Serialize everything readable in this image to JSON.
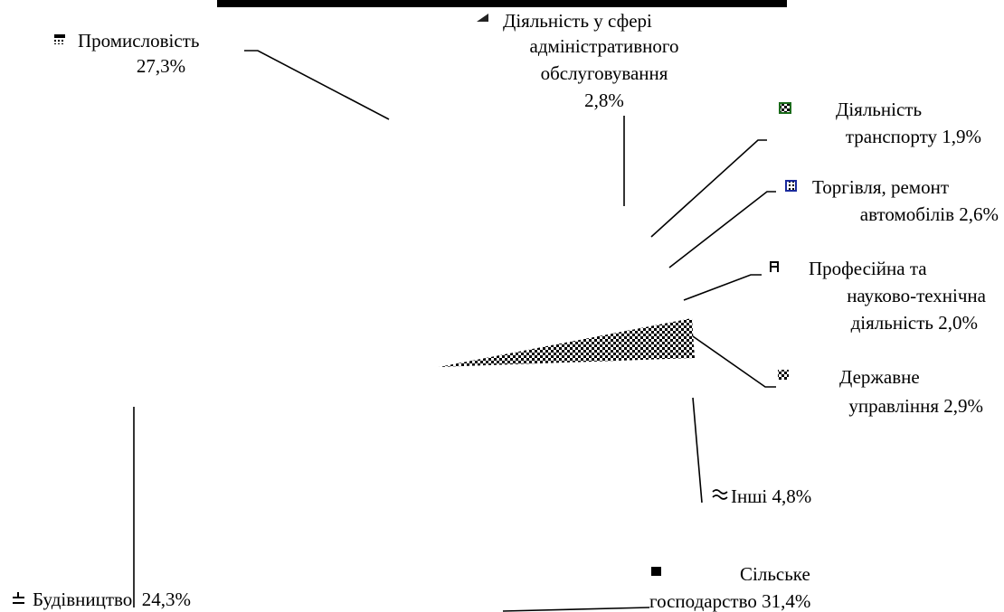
{
  "chart_data": {
    "type": "pie",
    "title": "",
    "categories": [
      "Промисловість",
      "Діяльність у сфері адміністративного обслуговування",
      "Діяльність транспорту",
      "Торгівля, ремонт автомобілів",
      "Професійна та науково-технічна діяльність",
      "Державне управління",
      "Інші",
      "Сільське господарство",
      "Будівництво"
    ],
    "values": [
      27.3,
      2.8,
      1.9,
      2.6,
      2.0,
      2.9,
      4.8,
      31.4,
      24.3
    ],
    "value_labels": [
      "27,3%",
      "2,8%",
      "1,9%",
      "2,6%",
      "2,0%",
      "2,9%",
      "4,8%",
      "31,4%",
      "24,3%"
    ],
    "legend": "labels beside slices with leader lines"
  },
  "labels": {
    "industry": {
      "line1": "Промисловість",
      "line2": "27,3%"
    },
    "admin": {
      "line1": "Діяльність у сфері",
      "line2": "адміністративного",
      "line3": "обслуговування",
      "line4": "2,8%"
    },
    "transport": {
      "line1": "Діяльність",
      "line2": "транспорту 1,9%"
    },
    "trade": {
      "line1": "Торгівля, ремонт",
      "line2": "автомобілів 2,6%"
    },
    "professional": {
      "line1": "Професійна та",
      "line2": "науково-технічна",
      "line3": "діяльність 2,0%"
    },
    "government": {
      "line1": "Державне",
      "line2": "управління 2,9%"
    },
    "other": {
      "line1": "Інші 4,8%"
    },
    "agriculture": {
      "line1": "Сільське",
      "line2": "господарство 31,4%"
    },
    "construction": {
      "line1": "Будівництво  24,3%"
    }
  },
  "colors": {
    "ink": "#000000",
    "transport_marker": "#1b6b1b",
    "trade_marker": "#1a2a9c",
    "background": "#ffffff"
  }
}
